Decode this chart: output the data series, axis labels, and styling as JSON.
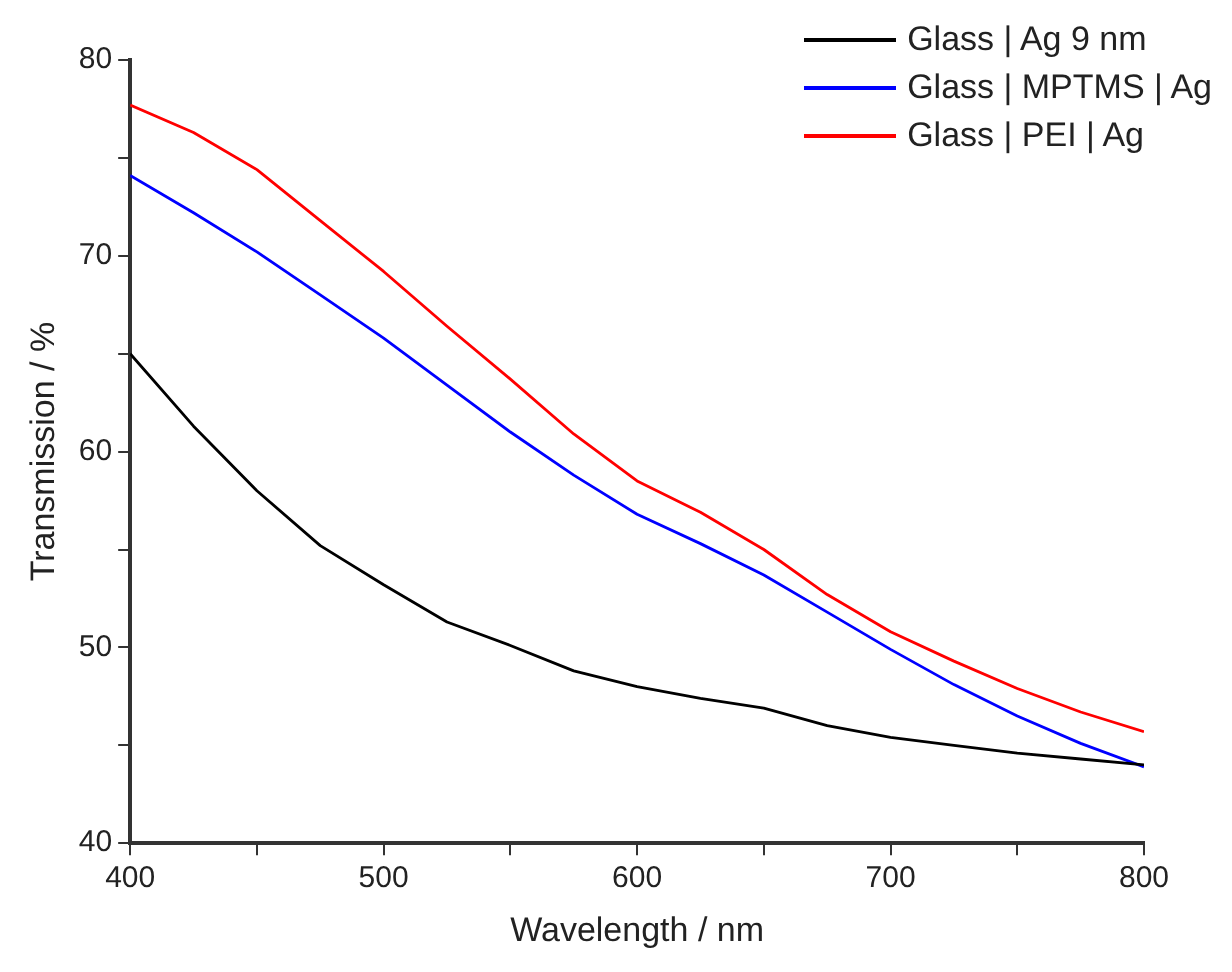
{
  "chart_data": {
    "type": "line",
    "xlabel": "Wavelength / nm",
    "ylabel": "Transmission / %",
    "x": [
      400,
      425,
      450,
      475,
      500,
      525,
      550,
      575,
      600,
      625,
      650,
      675,
      700,
      725,
      750,
      775,
      800
    ],
    "series": [
      {
        "name": "Glass | Ag 9 nm",
        "color": "#000000",
        "values": [
          65.0,
          61.3,
          58.0,
          55.2,
          53.2,
          51.3,
          50.1,
          48.8,
          48.0,
          47.4,
          46.9,
          46.0,
          45.4,
          45.0,
          44.6,
          44.3,
          44.0
        ]
      },
      {
        "name": "Glass | MPTMS | Ag",
        "color": "#0000ff",
        "values": [
          74.1,
          72.2,
          70.2,
          68.0,
          65.8,
          63.4,
          61.0,
          58.8,
          56.8,
          55.3,
          53.7,
          51.8,
          49.9,
          48.1,
          46.5,
          45.1,
          43.9
        ]
      },
      {
        "name": "Glass | PEI | Ag",
        "color": "#ff0000",
        "values": [
          77.7,
          76.3,
          74.4,
          71.8,
          69.2,
          66.4,
          63.7,
          60.9,
          58.5,
          56.9,
          55.0,
          52.7,
          50.8,
          49.3,
          47.9,
          46.7,
          45.7
        ]
      }
    ],
    "xlim": [
      400,
      800
    ],
    "xticks": [
      400,
      {
        "value": 450,
        "label": null
      },
      500,
      {
        "value": 550,
        "label": null
      },
      600,
      {
        "value": 650,
        "label": null
      },
      700,
      {
        "value": 750,
        "label": null
      },
      800
    ],
    "ylim": [
      40,
      80
    ],
    "yticks": [
      40,
      {
        "value": 45,
        "label": null
      },
      50,
      {
        "value": 55,
        "label": null
      },
      60,
      {
        "value": 65,
        "label": null
      },
      70,
      {
        "value": 75,
        "label": null
      },
      80
    ],
    "grid": false,
    "legend": "top right",
    "marker": "none",
    "line_style": "solid"
  }
}
